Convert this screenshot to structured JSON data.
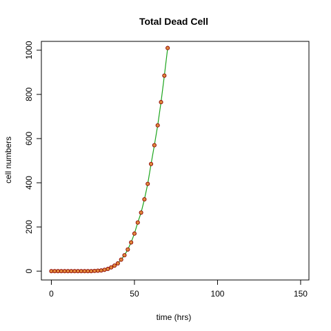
{
  "chart_data": {
    "type": "line",
    "title": "Total Dead Cell",
    "xlabel": "time (hrs)",
    "ylabel": "cell numbers",
    "xlim": [
      -6,
      155
    ],
    "ylim": [
      -40,
      1040
    ],
    "xticks": [
      0,
      50,
      100,
      150
    ],
    "yticks": [
      0,
      200,
      400,
      600,
      800,
      1000
    ],
    "grid": false,
    "legend": "none",
    "line_color": "#1aa41a",
    "marker_fill": "#e08a3c",
    "marker_edge": "#8b0000",
    "series": [
      {
        "x": [
          0,
          2,
          4,
          6,
          8,
          10,
          12,
          14,
          16,
          18,
          20,
          22,
          24,
          26,
          28,
          30,
          32,
          34,
          36,
          38,
          40,
          42,
          44,
          46,
          48,
          50,
          52,
          54,
          56,
          58,
          60,
          62,
          64,
          66,
          68,
          70
        ],
        "y": [
          0,
          0,
          0,
          0,
          0,
          0,
          0,
          0,
          0,
          0,
          0,
          0,
          0,
          1,
          2,
          3,
          6,
          10,
          17,
          25,
          35,
          52,
          72,
          98,
          130,
          170,
          220,
          265,
          325,
          395,
          485,
          570,
          660,
          765,
          885,
          1010
        ]
      }
    ]
  }
}
